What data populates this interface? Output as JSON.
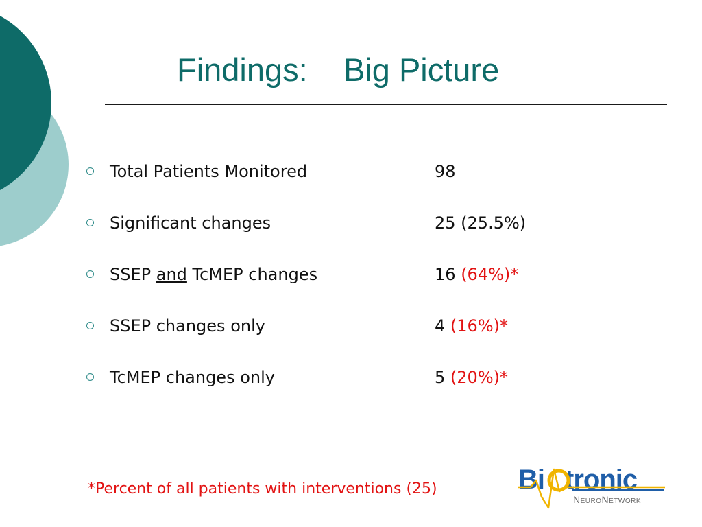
{
  "slide": {
    "title_left": "Findings:",
    "title_right": "Big Picture"
  },
  "rows": [
    {
      "label": "Total Patients Monitored",
      "value": "98"
    },
    {
      "label": "Significant changes",
      "value": "25 (25.5%)"
    },
    {
      "label_part1": "SSEP ",
      "label_underlined": "and",
      "label_part2": " TcMEP changes",
      "value_count": "16",
      "value_pct": "(64%)*"
    },
    {
      "label": "SSEP changes only",
      "value_count": "4",
      "value_pct": "(16%)*"
    },
    {
      "label": "TcMEP changes only",
      "value_count": "5",
      "value_pct": "(20%)*"
    }
  ],
  "footnote": "*Percent of all patients with interventions (25)",
  "logo": {
    "part1": "Bi",
    "part2": "tronic",
    "tagline": "NeuroNetwork"
  },
  "colors": {
    "title": "#0e6b68",
    "dark_teal_circle": "#0e6b68",
    "light_teal_circle": "#9dcdcc",
    "accent_red": "#e21313",
    "logo_blue": "#1f5ea8",
    "logo_yellow": "#f0b400"
  },
  "icons": [
    "bullet-circle-icon",
    "waveform-icon"
  ]
}
